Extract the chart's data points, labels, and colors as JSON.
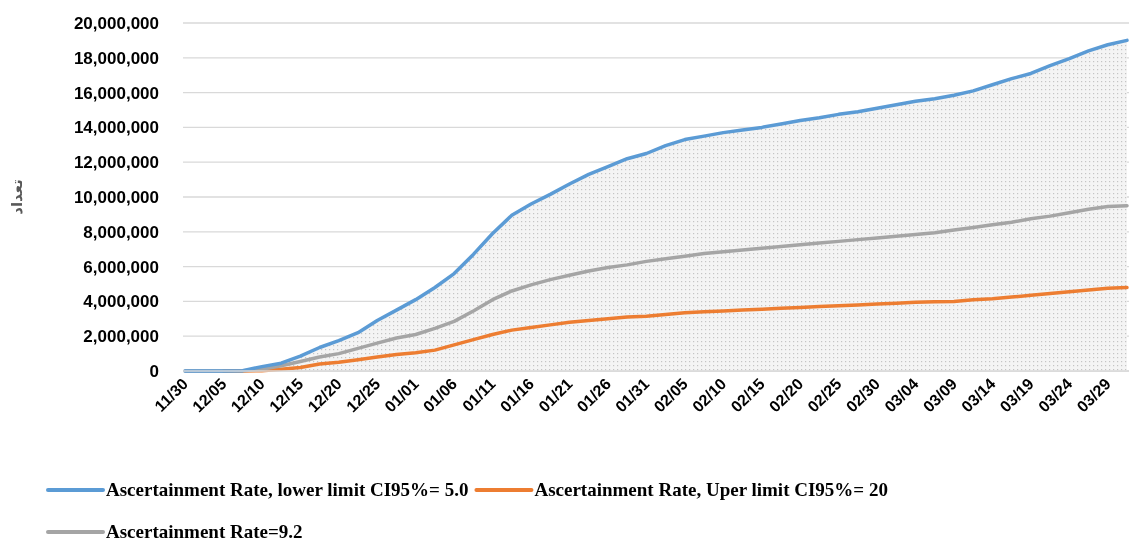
{
  "chart_data": {
    "type": "line",
    "ylabel": "تعداد",
    "categories": [
      "11/30",
      null,
      "12/05",
      null,
      "12/10",
      null,
      "12/15",
      null,
      "12/20",
      null,
      "12/25",
      null,
      "01/01",
      null,
      "01/06",
      null,
      "01/11",
      null,
      "01/16",
      null,
      "01/21",
      null,
      "01/26",
      null,
      "01/31",
      null,
      "02/05",
      null,
      "02/10",
      null,
      "02/15",
      null,
      "02/20",
      null,
      "02/25",
      null,
      "02/30",
      null,
      "03/04",
      null,
      "03/09",
      null,
      "03/14",
      null,
      "03/19",
      null,
      "03/24",
      null,
      "03/29",
      null
    ],
    "series": [
      {
        "name": "Ascertainment Rate,  lower limit CI95%= 5.0",
        "type": "area",
        "color": "#5b9bd5",
        "values": [
          0,
          0,
          0,
          20000,
          250000,
          450000,
          850000,
          1350000,
          1750000,
          2200000,
          2900000,
          3500000,
          4100000,
          4800000,
          5600000,
          6700000,
          7900000,
          8950000,
          9600000,
          10150000,
          10750000,
          11300000,
          11750000,
          12200000,
          12500000,
          12950000,
          13300000,
          13500000,
          13700000,
          13850000,
          14000000,
          14200000,
          14400000,
          14550000,
          14750000,
          14900000,
          15100000,
          15300000,
          15500000,
          15650000,
          15850000,
          16100000,
          16450000,
          16800000,
          17100000,
          17550000,
          17950000,
          18400000,
          18750000,
          19000000
        ]
      },
      {
        "name": "Ascertainment Rate, Uper limit CI95%= 20",
        "type": "line",
        "color": "#ed7d31",
        "values": [
          null,
          null,
          0,
          0,
          20000,
          100000,
          200000,
          400000,
          500000,
          650000,
          800000,
          950000,
          1050000,
          1200000,
          1500000,
          1800000,
          2100000,
          2350000,
          2500000,
          2650000,
          2800000,
          2900000,
          3000000,
          3100000,
          3150000,
          3250000,
          3350000,
          3400000,
          3450000,
          3500000,
          3550000,
          3600000,
          3650000,
          3700000,
          3750000,
          3800000,
          3850000,
          3900000,
          3950000,
          3980000,
          4000000,
          4100000,
          4150000,
          4250000,
          4350000,
          4450000,
          4550000,
          4650000,
          4750000,
          4800000
        ]
      },
      {
        "name": "Ascertainment Rate=9.2",
        "type": "line",
        "color": "#a5a5a5",
        "values": [
          0,
          0,
          0,
          20000,
          100000,
          300000,
          550000,
          800000,
          1000000,
          1300000,
          1600000,
          1900000,
          2100000,
          2450000,
          2850000,
          3450000,
          4100000,
          4600000,
          4950000,
          5250000,
          5500000,
          5750000,
          5950000,
          6100000,
          6300000,
          6450000,
          6600000,
          6750000,
          6850000,
          6950000,
          7050000,
          7150000,
          7250000,
          7350000,
          7450000,
          7550000,
          7650000,
          7750000,
          7850000,
          7950000,
          8100000,
          8250000,
          8400000,
          8550000,
          8750000,
          8900000,
          9100000,
          9300000,
          9450000,
          9500000
        ]
      }
    ],
    "ylim": [
      0,
      20000000
    ],
    "yticks": [
      0,
      {
        "value": 2000000,
        "label": "2,000,000"
      },
      {
        "value": 4000000,
        "label": "4,000,000"
      },
      {
        "value": 6000000,
        "label": "6,000,000"
      },
      {
        "value": 8000000,
        "label": "8,000,000"
      },
      {
        "value": 10000000,
        "label": "10,000,000"
      },
      {
        "value": 12000000,
        "label": "12,000,000"
      },
      {
        "value": 14000000,
        "label": "14,000,000"
      },
      {
        "value": 16000000,
        "label": "16,000,000"
      },
      {
        "value": 18000000,
        "label": "18,000,000"
      },
      {
        "value": 20000000,
        "label": "20,000,000"
      }
    ],
    "grid": "y",
    "legend": "bottom"
  }
}
